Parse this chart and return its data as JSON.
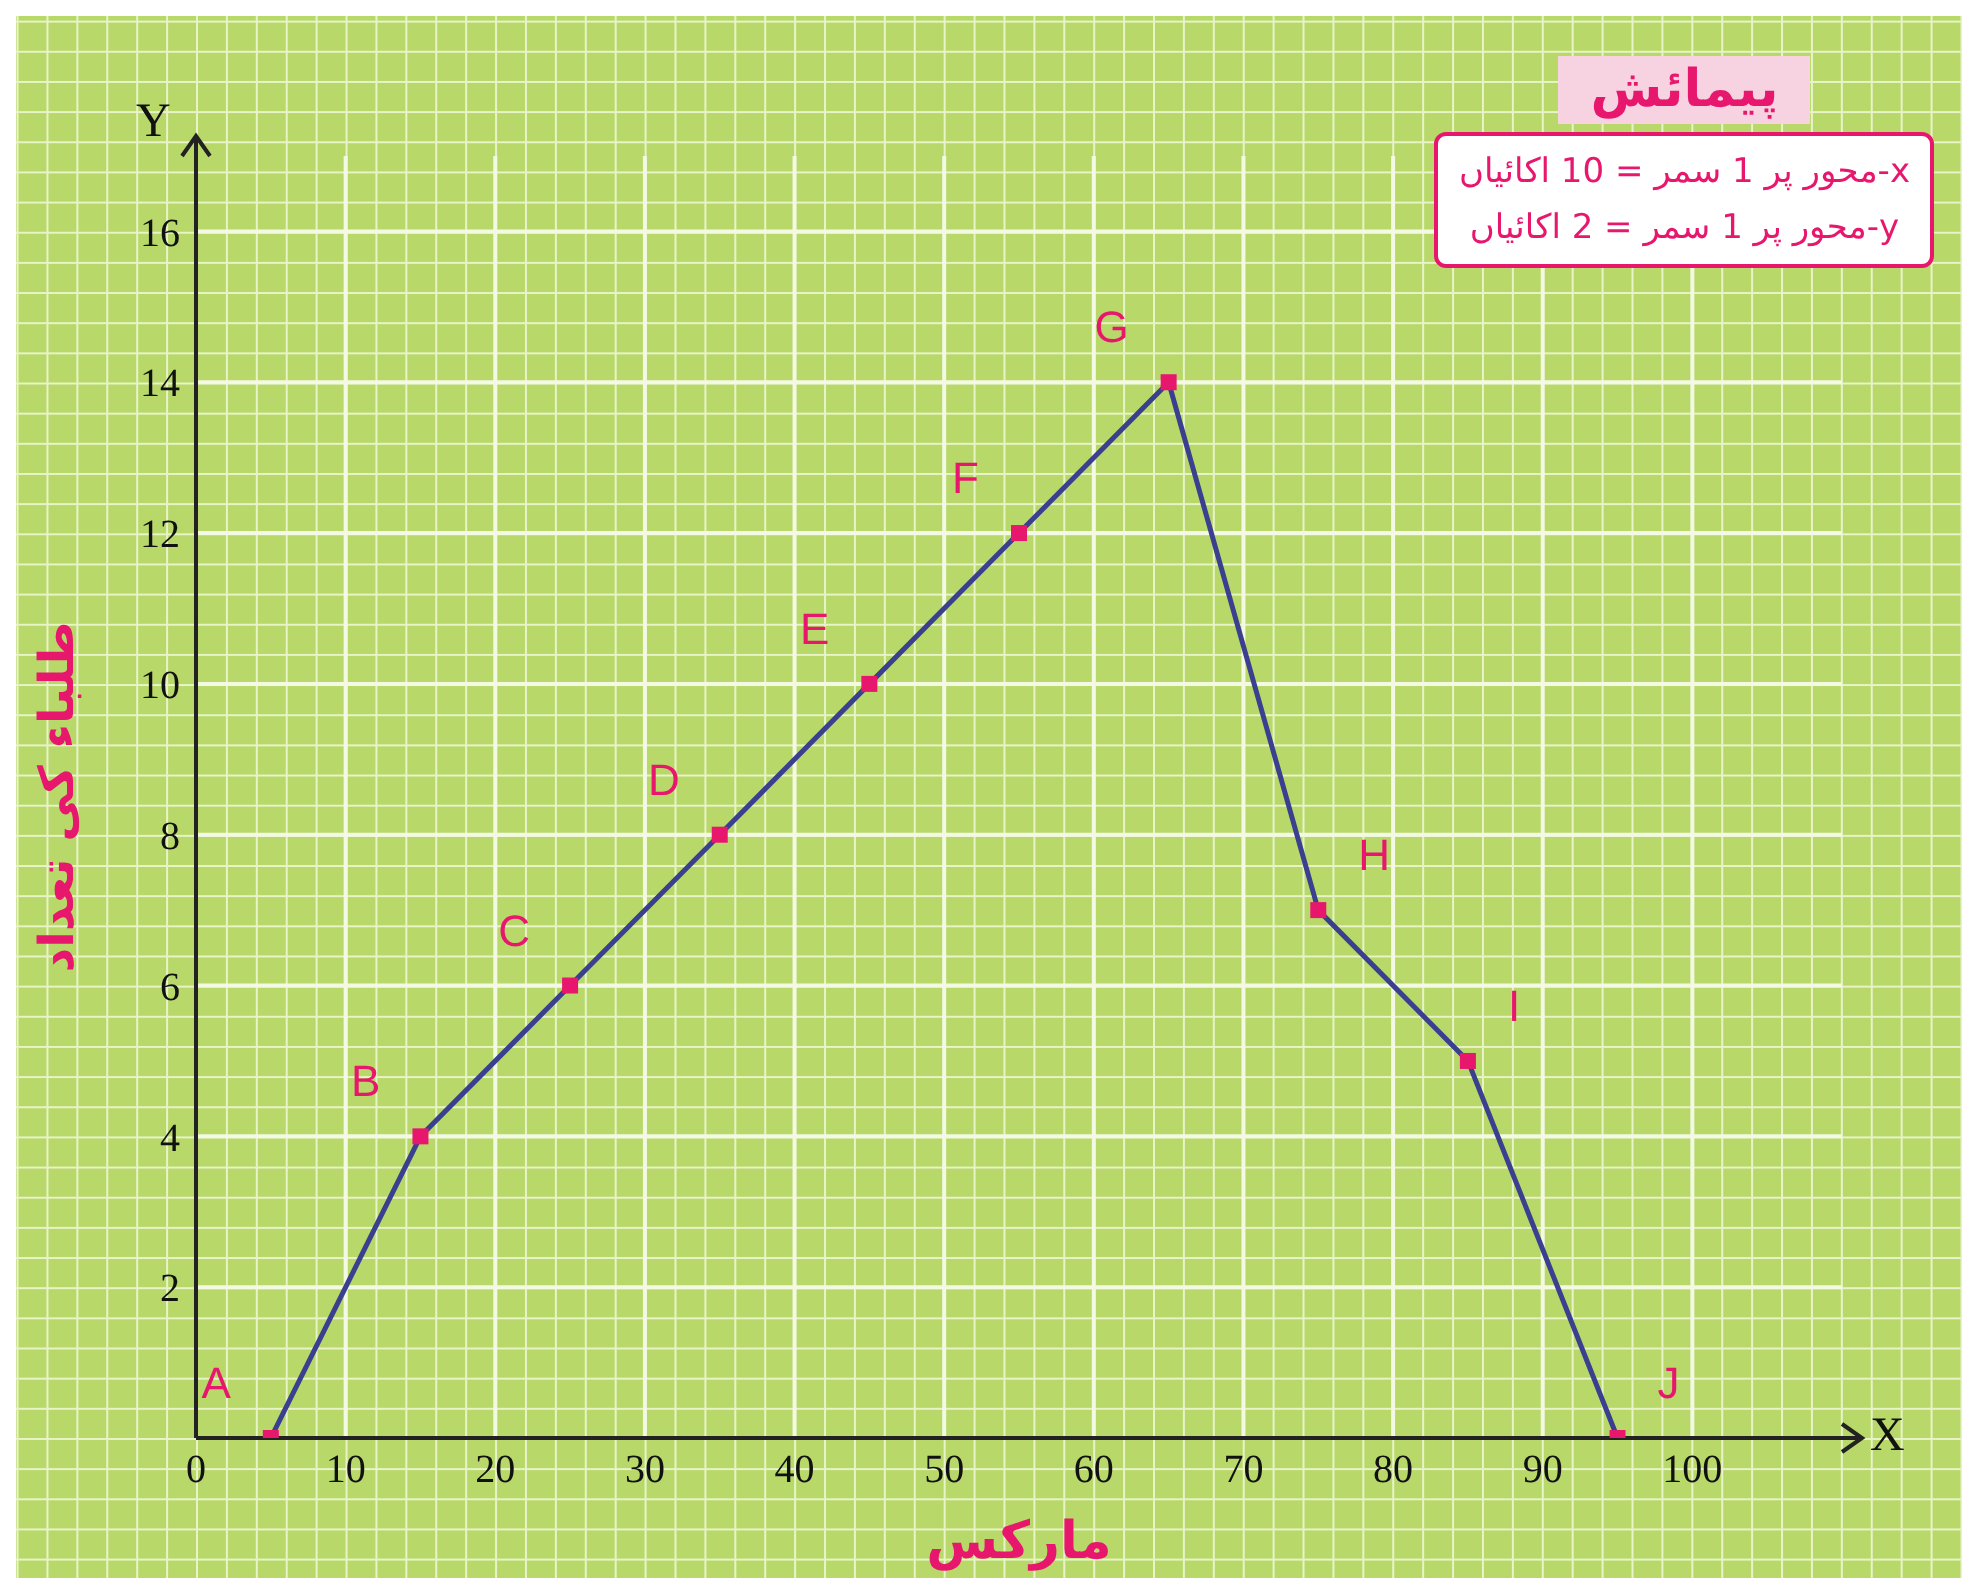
{
  "chart_data": {
    "type": "line",
    "xlabel": "مارکس",
    "ylabel": "طلباء کی تعداد",
    "x": [
      5,
      15,
      25,
      35,
      45,
      55,
      65,
      75,
      85,
      95
    ],
    "series": [
      {
        "color": "#3a3f8f",
        "values": [
          0,
          4,
          6,
          8,
          10,
          12,
          14,
          7,
          5,
          0
        ]
      }
    ],
    "xlim": [
      0,
      110
    ],
    "xticks": [
      0,
      10,
      20,
      30,
      40,
      50,
      60,
      70,
      80,
      90,
      100
    ],
    "ylim": [
      0,
      17
    ],
    "yticks": [
      2,
      4,
      6,
      8,
      10,
      12,
      14,
      16
    ],
    "grid": true,
    "marker": "square",
    "line_style": "solid",
    "annotations": [
      "پیمائش",
      "x-محور پر 1 سمر = 10 اکائیاں",
      "y-محور پر 1 سمر = 2 اکائیاں",
      {
        "text": "A",
        "x": 5,
        "y": 0
      },
      {
        "text": "B",
        "x": 15,
        "y": 4
      },
      {
        "text": "C",
        "x": 25,
        "y": 6
      },
      {
        "text": "D",
        "x": 35,
        "y": 8
      },
      {
        "text": "E",
        "x": 45,
        "y": 10
      },
      {
        "text": "F",
        "x": 55,
        "y": 12
      },
      {
        "text": "G",
        "x": 65,
        "y": 14
      },
      {
        "text": "H",
        "x": 75,
        "y": 7
      },
      {
        "text": "I",
        "x": 85,
        "y": 5
      },
      {
        "text": "J",
        "x": 95,
        "y": 0
      },
      "X",
      "Y"
    ]
  }
}
